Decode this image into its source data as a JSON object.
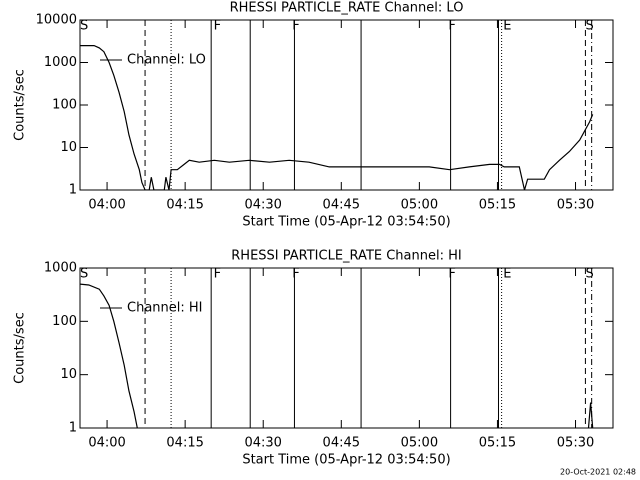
{
  "chart_data": [
    {
      "type": "line",
      "title": "RHESSI PARTICLE_RATE Channel: LO",
      "x_label": "Start Time (05-Apr-12 03:54:50)",
      "y_label": "Counts/sec",
      "log_y": true,
      "ylim": [
        1,
        10000
      ],
      "yticks": [
        1,
        10,
        100,
        1000,
        10000
      ],
      "xlim": [
        234.8,
        337.2
      ],
      "xticks": [
        {
          "value": 240,
          "label": "04:00"
        },
        {
          "value": 255,
          "label": "04:15"
        },
        {
          "value": 270,
          "label": "04:30"
        },
        {
          "value": 285,
          "label": "04:45"
        },
        {
          "value": 300,
          "label": "05:00"
        },
        {
          "value": 315,
          "label": "05:15"
        },
        {
          "value": 330,
          "label": "05:30"
        }
      ],
      "x": [
        234.8,
        237.5,
        238.5,
        239.4,
        240.4,
        241.3,
        242.3,
        243.3,
        244.2,
        245.2,
        246.2,
        246.7,
        247.3,
        248.1,
        248.5,
        249.0,
        251.0,
        251.3,
        251.9,
        252.3,
        253.5,
        254.8,
        255.8,
        257.7,
        260.6,
        263.5,
        267.3,
        271.2,
        275.0,
        278.8,
        282.7,
        286.5,
        290.4,
        296.2,
        301.9,
        305.8,
        309.6,
        313.5,
        315.4,
        316.3,
        319.2,
        320.2,
        320.8,
        324.0,
        325.0,
        326.9,
        328.8,
        330.8,
        332.7,
        333.3
      ],
      "series": [
        {
          "name": "Channel: LO",
          "color": "#000000",
          "values": [
            2500,
            2500,
            2200,
            1800,
            1000,
            500,
            200,
            70,
            20,
            7,
            3,
            1.5,
            1,
            1,
            2,
            1,
            1,
            2,
            1,
            3,
            3,
            4,
            5,
            4.5,
            5,
            4.5,
            5,
            4.5,
            5,
            4.5,
            3.5,
            3.5,
            3.5,
            3.5,
            3.5,
            3,
            3.5,
            4,
            4,
            3.5,
            3.5,
            1,
            1.8,
            1.8,
            3,
            5,
            8,
            15,
            40,
            60
          ]
        }
      ],
      "markers": [
        {
          "x": 247.3,
          "style": "dashed"
        },
        {
          "x": 252.3,
          "style": "dotted"
        },
        {
          "x": 260.0,
          "style": "solid"
        },
        {
          "x": 267.5,
          "style": "solid"
        },
        {
          "x": 276.0,
          "style": "solid"
        },
        {
          "x": 288.8,
          "style": "solid"
        },
        {
          "x": 306.0,
          "style": "solid"
        },
        {
          "x": 315.2,
          "style": "solid"
        },
        {
          "x": 315.8,
          "style": "dotted"
        },
        {
          "x": 331.9,
          "style": "dashed"
        },
        {
          "x": 333.1,
          "style": "dash-dot"
        }
      ],
      "flags": [
        {
          "x": 235.6,
          "label": "S"
        },
        {
          "x": 261.2,
          "label": "F"
        },
        {
          "x": 276.3,
          "label": "F"
        },
        {
          "x": 306.3,
          "label": "F"
        },
        {
          "x": 316.9,
          "label": "E"
        },
        {
          "x": 332.7,
          "label": "S"
        }
      ]
    },
    {
      "type": "line",
      "title": "RHESSI PARTICLE_RATE Channel: HI",
      "x_label": "Start Time (05-Apr-12 03:54:50)",
      "y_label": "Counts/sec",
      "log_y": true,
      "ylim": [
        1,
        1000
      ],
      "yticks": [
        1,
        10,
        100,
        1000
      ],
      "xlim": [
        234.8,
        337.2
      ],
      "xticks": [
        {
          "value": 240,
          "label": "04:00"
        },
        {
          "value": 255,
          "label": "04:15"
        },
        {
          "value": 270,
          "label": "04:30"
        },
        {
          "value": 285,
          "label": "04:45"
        },
        {
          "value": 300,
          "label": "05:00"
        },
        {
          "value": 315,
          "label": "05:15"
        },
        {
          "value": 330,
          "label": "05:30"
        }
      ],
      "x": [
        234.8,
        236.5,
        238.5,
        239.4,
        240.4,
        241.3,
        242.3,
        243.3,
        244.2,
        245.2,
        245.8,
        300,
        332.5,
        332.9,
        333.3
      ],
      "series": [
        {
          "name": "Channel: HI",
          "color": "#000000",
          "values": [
            500,
            480,
            400,
            300,
            200,
            100,
            40,
            15,
            5,
            2,
            1,
            null,
            1,
            3,
            1
          ]
        }
      ],
      "markers": [
        {
          "x": 247.3,
          "style": "dashed"
        },
        {
          "x": 252.3,
          "style": "dotted"
        },
        {
          "x": 260.0,
          "style": "solid"
        },
        {
          "x": 267.5,
          "style": "solid"
        },
        {
          "x": 276.0,
          "style": "solid"
        },
        {
          "x": 288.8,
          "style": "solid"
        },
        {
          "x": 306.0,
          "style": "solid"
        },
        {
          "x": 315.2,
          "style": "solid"
        },
        {
          "x": 315.8,
          "style": "dotted"
        },
        {
          "x": 331.9,
          "style": "dashed"
        },
        {
          "x": 333.1,
          "style": "dash-dot"
        }
      ],
      "flags": [
        {
          "x": 235.6,
          "label": "S"
        },
        {
          "x": 261.2,
          "label": "F"
        },
        {
          "x": 276.3,
          "label": "F"
        },
        {
          "x": 306.3,
          "label": "F"
        },
        {
          "x": 316.9,
          "label": "E"
        },
        {
          "x": 332.7,
          "label": "S"
        }
      ]
    }
  ],
  "footer": "20-Oct-2021 02:48"
}
